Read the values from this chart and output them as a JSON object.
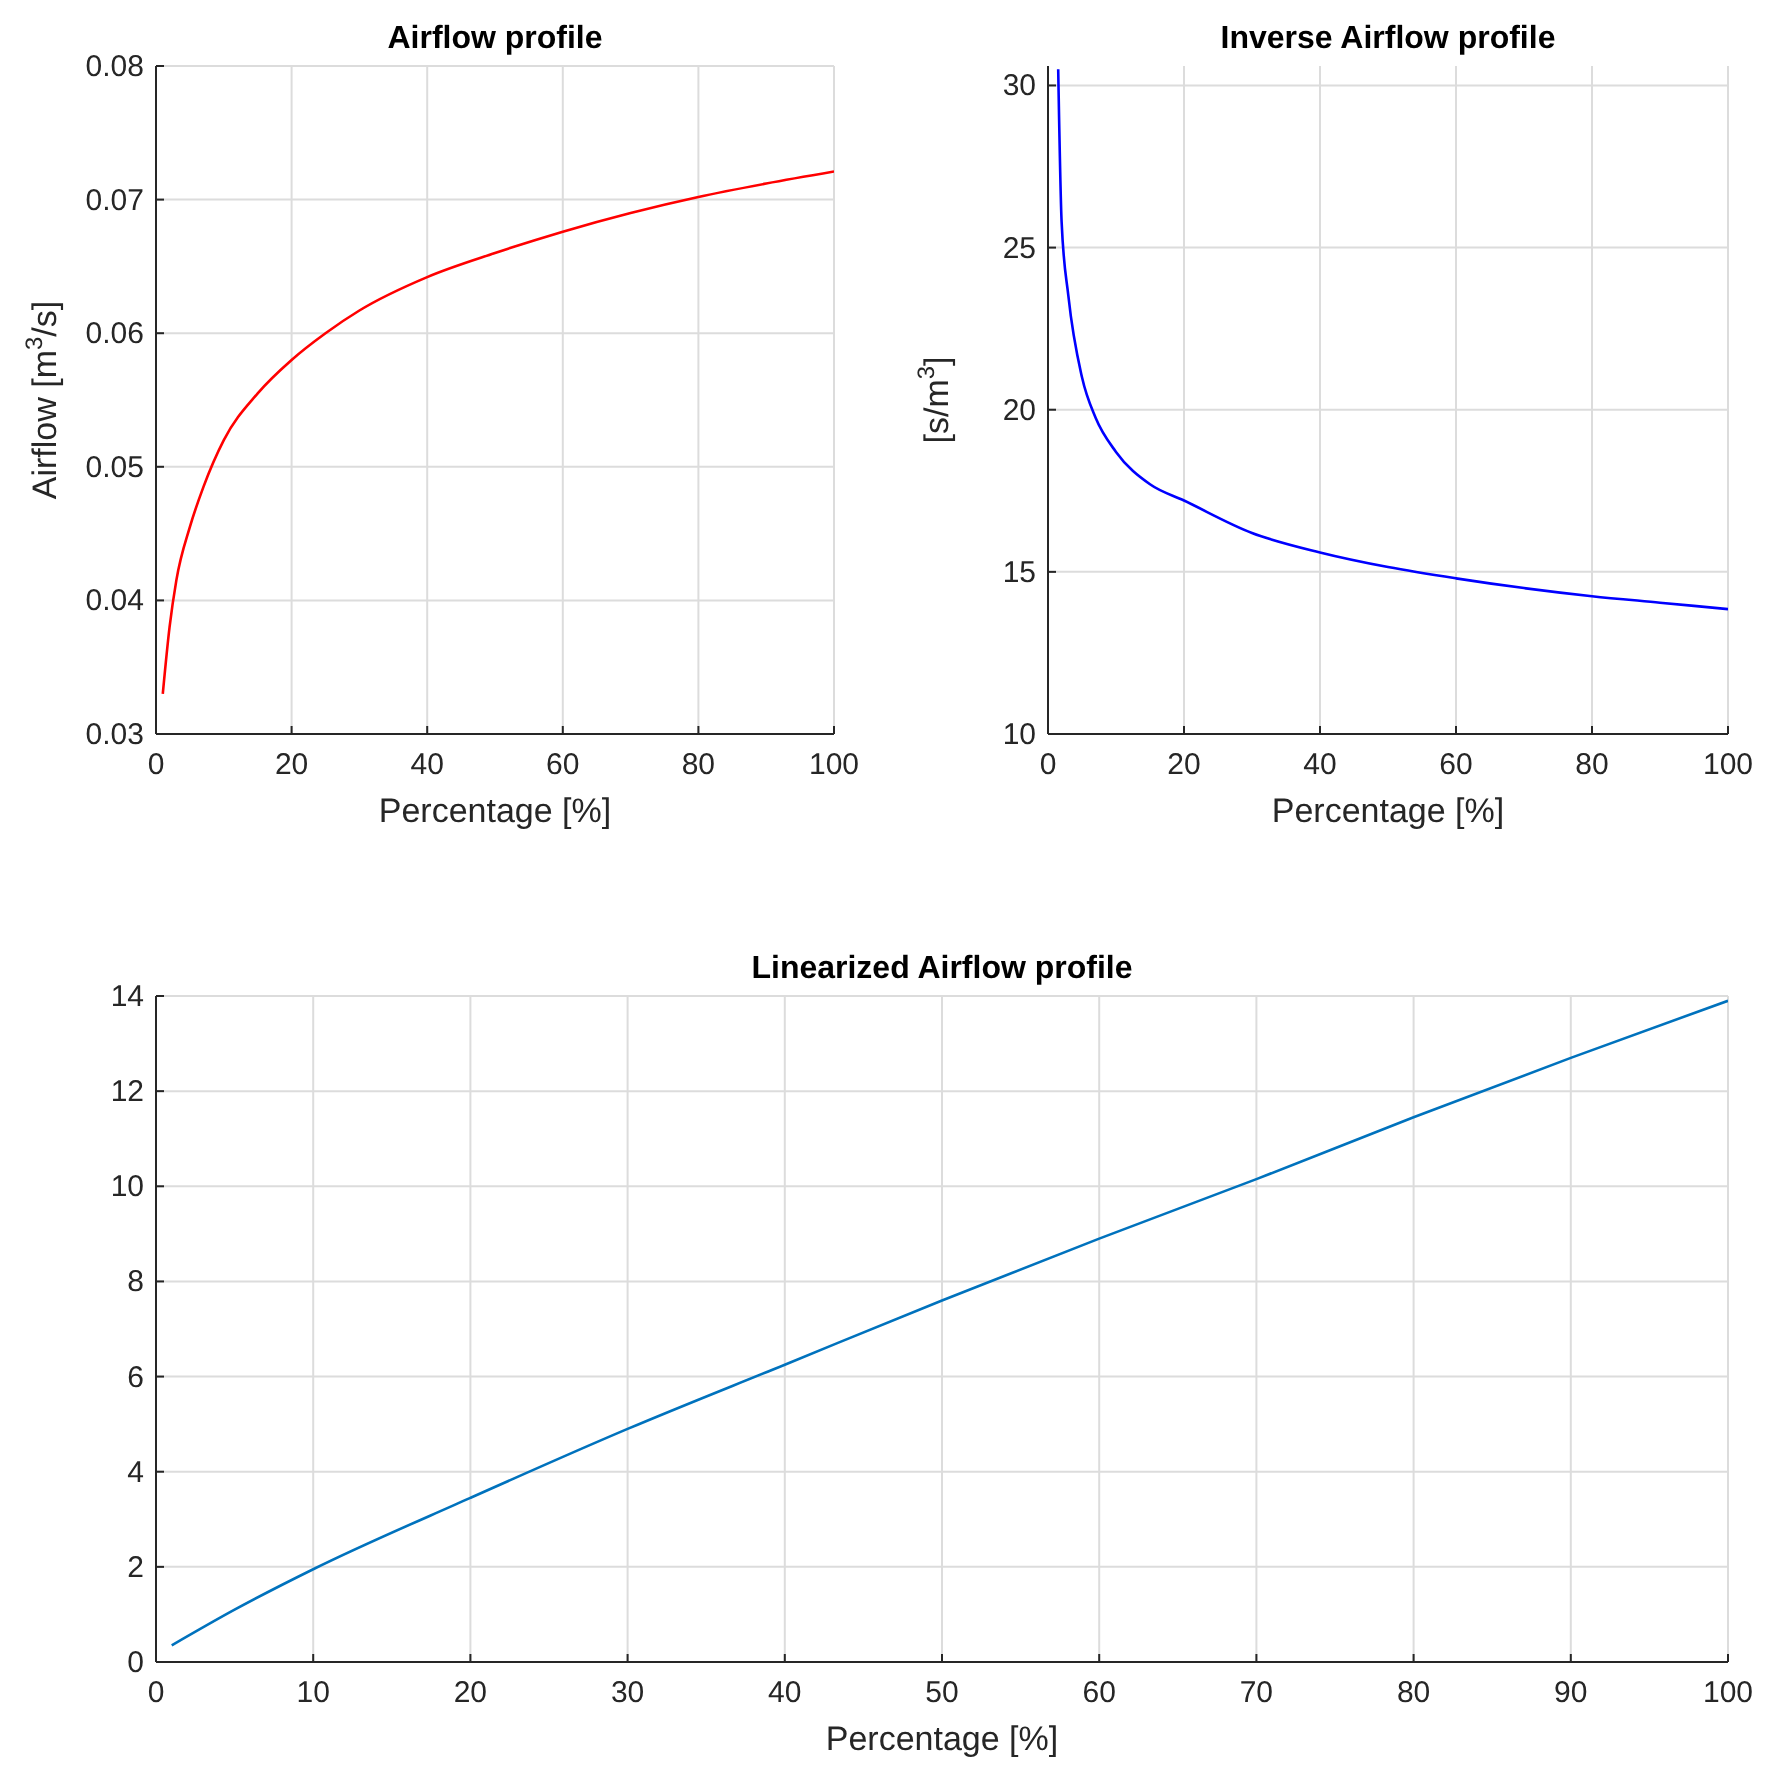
{
  "chart_data": [
    {
      "type": "line",
      "title": "Airflow profile",
      "xlabel": "Percentage [%]",
      "ylabel": "Airflow [m$^{3}$/s]",
      "xlim": [
        0,
        100
      ],
      "xticks": [
        0,
        20,
        40,
        60,
        80,
        100
      ],
      "ylim": [
        0.03,
        0.08
      ],
      "yticks": [
        0.03,
        0.04,
        0.05,
        0.06,
        0.07,
        0.08
      ],
      "grid": true,
      "series": [
        {
          "color": "#ff0000",
          "x": [
            1,
            2,
            3,
            5,
            7,
            10,
            15,
            20,
            25,
            30,
            40,
            50,
            60,
            70,
            80,
            90,
            100
          ],
          "values": [
            0.033,
            0.038,
            0.0415,
            0.0455,
            0.0485,
            0.052,
            0.0555,
            0.058,
            0.06,
            0.0617,
            0.0642,
            0.066,
            0.0676,
            0.069,
            0.0702,
            0.0712,
            0.0721
          ]
        }
      ]
    },
    {
      "type": "line",
      "title": "Inverse Airflow profile",
      "xlabel": "Percentage [%]",
      "ylabel": "[s/m$^{3}$]",
      "xlim": [
        0,
        100
      ],
      "xticks": [
        0,
        20,
        40,
        60,
        80,
        100
      ],
      "ylim": [
        10,
        30.6
      ],
      "yticks": [
        10,
        15,
        20,
        25,
        30
      ],
      "grid": true,
      "series": [
        {
          "color": "#0000ff",
          "x": [
            1.5,
            2,
            3,
            5,
            7,
            10,
            15,
            20,
            30,
            40,
            50,
            60,
            70,
            80,
            90,
            100
          ],
          "values": [
            30.5,
            25.8,
            23.5,
            21,
            19.75,
            18.7,
            17.7,
            17.2,
            16.2,
            15.6,
            15.15,
            14.8,
            14.5,
            14.25,
            14.05,
            13.85
          ]
        }
      ]
    },
    {
      "type": "line",
      "title": "Linearized Airflow profile",
      "xlabel": "Percentage [%]",
      "xlim": [
        0,
        100
      ],
      "xticks": [
        0,
        10,
        20,
        30,
        40,
        50,
        60,
        70,
        80,
        90,
        100
      ],
      "ylim": [
        0,
        14
      ],
      "yticks": [
        0,
        2,
        4,
        6,
        8,
        10,
        12,
        14
      ],
      "grid": true,
      "series": [
        {
          "color": "#0072bd",
          "x": [
            1,
            5,
            10,
            20,
            30,
            40,
            50,
            60,
            70,
            80,
            90,
            100
          ],
          "values": [
            0.35,
            1.1,
            1.95,
            3.45,
            4.9,
            6.25,
            7.6,
            8.9,
            10.15,
            11.45,
            12.7,
            13.9
          ]
        }
      ]
    }
  ]
}
